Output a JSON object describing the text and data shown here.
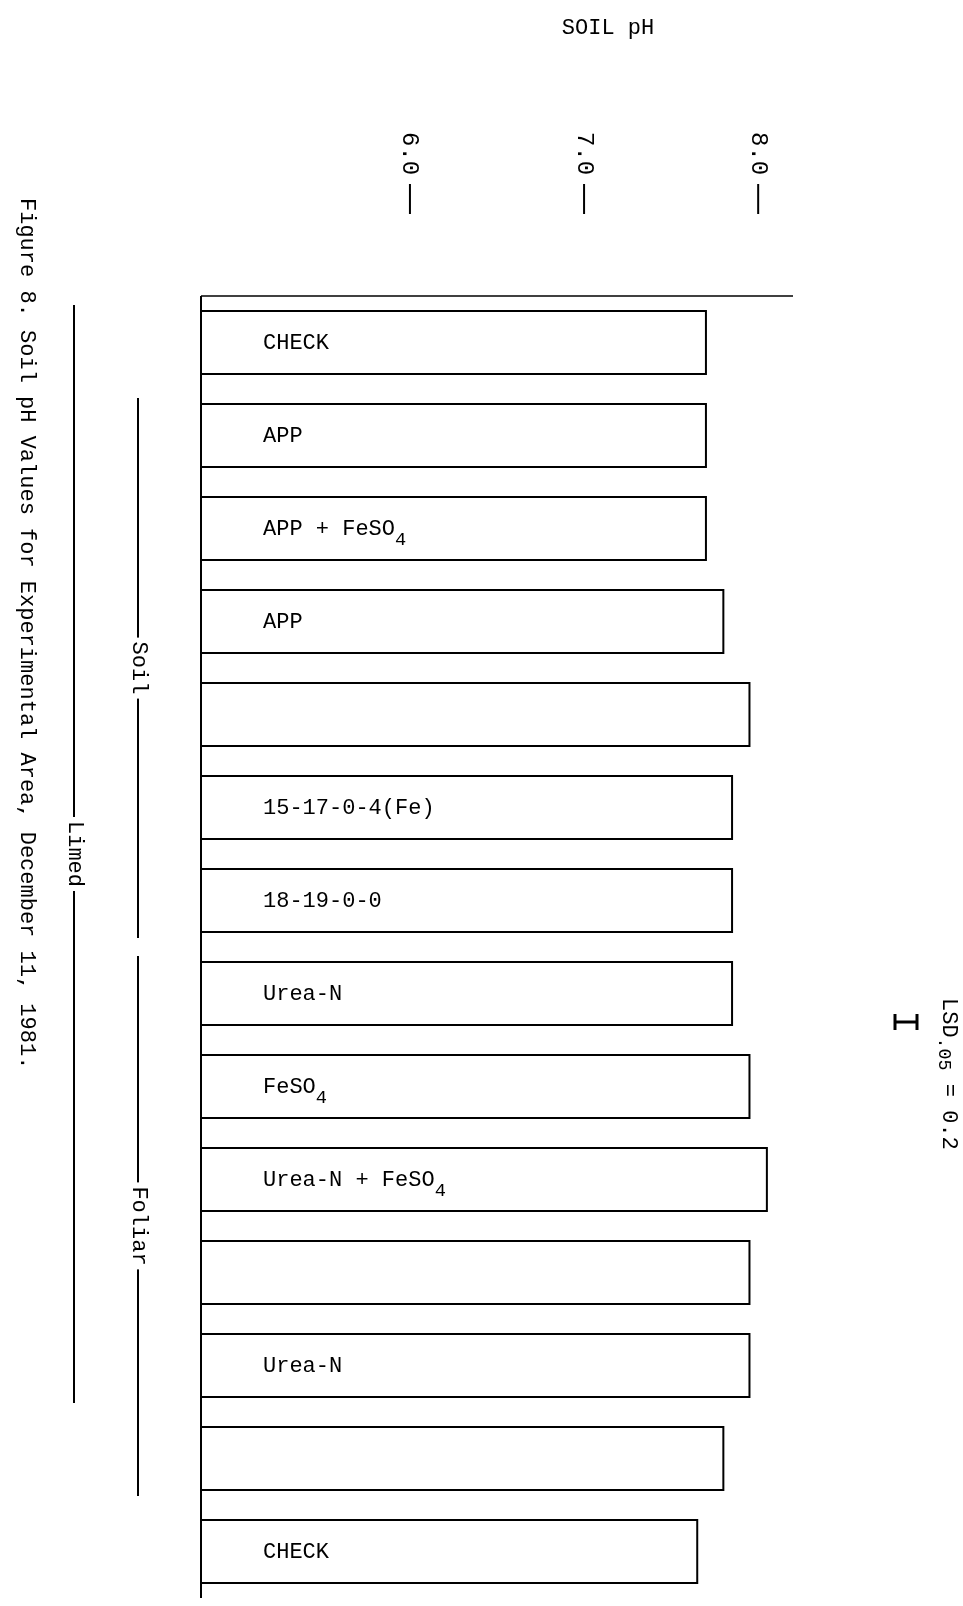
{
  "chart_data": {
    "type": "bar",
    "orientation": "horizontal",
    "title": "Figure 8.  Soil pH Values for Experimental Area, December 11, 1981.",
    "xlabel": "SOIL pH",
    "categories": [
      "CHECK",
      "APP",
      "APP + FeSO$_{4}$",
      "APP",
      null,
      "15-17-0-4(Fe)",
      "18-19-0-0",
      "Urea-N",
      "FeSO$_{4}$",
      "Urea-N + FeSO$_{4}$",
      null,
      "Urea-N",
      null,
      "CHECK"
    ],
    "values": [
      7.7,
      7.7,
      7.7,
      7.8,
      7.95,
      7.85,
      7.85,
      7.85,
      7.95,
      8.05,
      7.95,
      7.95,
      7.8,
      7.65
    ],
    "color": "#ffffff",
    "xlim": [
      4.8,
      8.2
    ],
    "xticks": [
      {
        "value": 6,
        "label": "6.0"
      },
      {
        "value": 7,
        "label": "7.0"
      },
      {
        "value": 8,
        "label": "8.0"
      }
    ],
    "annotations": [
      "LSD$_{.05}$ = 0.2",
      "Soil",
      "Foliar",
      "Limed"
    ],
    "grid": false,
    "legend": false
  }
}
